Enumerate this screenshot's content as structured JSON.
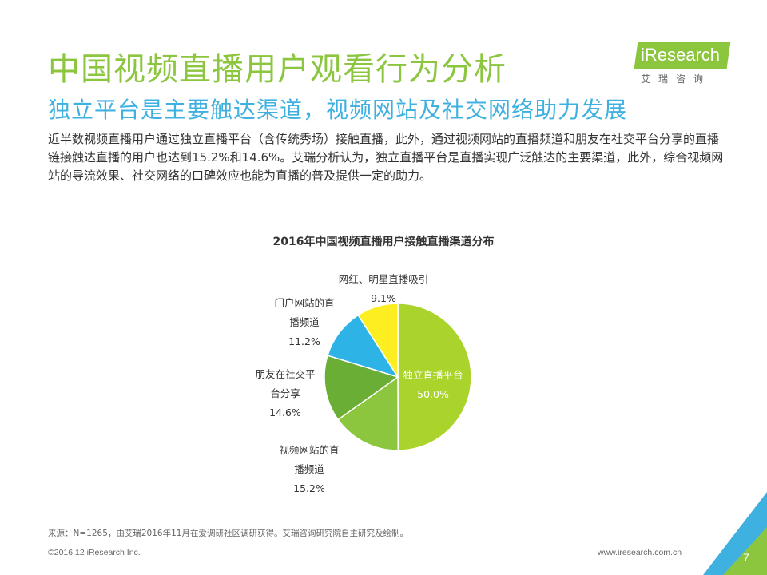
{
  "header": {
    "title": "中国视频直播用户观看行为分析",
    "subtitle": "独立平台是主要触达渠道，视频网站及社交网络助力发展",
    "logo_text": "iResearch",
    "logo_cn": "艾瑞咨询"
  },
  "description": "近半数视频直播用户通过独立直播平台（含传统秀场）接触直播，此外，通过视频网站的直播频道和朋友在社交平台分享的直播链接触达直播的用户也达到15.2%和14.6%。艾瑞分析认为，独立直播平台是直播实现广泛触达的主要渠道，此外，综合视频网站的导流效果、社交网络的口碑效应也能为直播的普及提供一定的助力。",
  "chart_data": {
    "type": "pie",
    "title": "2016年中国视频直播用户接触直播渠道分布",
    "slices": [
      {
        "label": "独立直播平台",
        "value": 50.0,
        "display": "50.0%",
        "color": "#aad32c"
      },
      {
        "label": "视频网站的直播频道",
        "value": 15.2,
        "display": "15.2%",
        "color": "#8cc63f"
      },
      {
        "label": "朋友在社交平台分享",
        "value": 14.6,
        "display": "14.6%",
        "color": "#6aae36"
      },
      {
        "label": "门户网站的直播频道",
        "value": 11.2,
        "display": "11.2%",
        "color": "#2eb3e6"
      },
      {
        "label": "网红、明星直播吸引",
        "value": 9.1,
        "display": "9.1%",
        "color": "#fcee21"
      }
    ],
    "labels": {
      "s0": [
        "独立直播平台",
        "50.0%"
      ],
      "s1": [
        "视频网站的直",
        "播频道",
        "15.2%"
      ],
      "s2": [
        "朋友在社交平",
        "台分享",
        "14.6%"
      ],
      "s3": [
        "门户网站的直",
        "播频道",
        "11.2%"
      ],
      "s4": [
        "网红、明星直播吸引",
        "9.1%"
      ]
    }
  },
  "footer": {
    "source": "来源：N=1265，由艾瑞2016年11月在爱调研社区调研获得。艾瑞咨询研究院自主研究及绘制。",
    "copyright": "©2016.12 iResearch Inc.",
    "site": "www.iresearch.com.cn",
    "page": "7"
  },
  "colors": {
    "accent_green": "#8cc63f",
    "accent_blue": "#3fb1e0"
  }
}
